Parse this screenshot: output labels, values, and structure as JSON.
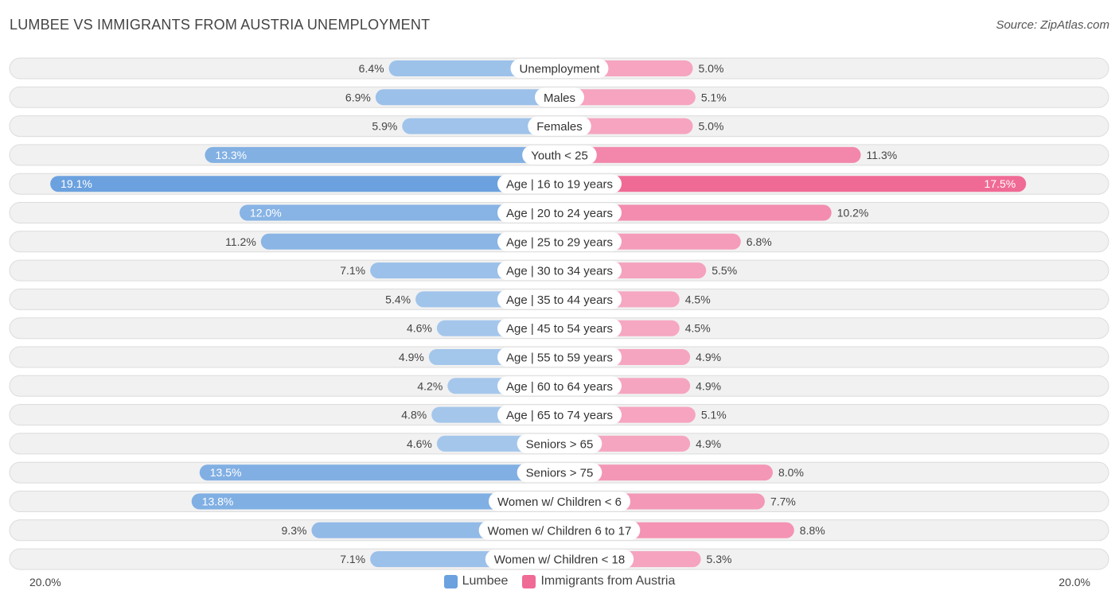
{
  "title": "LUMBEE VS IMMIGRANTS FROM AUSTRIA UNEMPLOYMENT",
  "source": "Source: ZipAtlas.com",
  "colors": {
    "left_light": "#a7c8ec",
    "left_dark": "#6ba1de",
    "right_light": "#f6a9c3",
    "right_dark": "#f06a96"
  },
  "legend": [
    {
      "name": "Lumbee",
      "color": "#6ba1de"
    },
    {
      "name": "Immigrants from Austria",
      "color": "#f06a96"
    }
  ],
  "axis": {
    "left_label": "20.0%",
    "right_label": "20.0%"
  },
  "chart_data": {
    "type": "bar",
    "orientation": "horizontal-diverging",
    "title": "LUMBEE VS IMMIGRANTS FROM AUSTRIA UNEMPLOYMENT",
    "xlim": [
      0,
      20
    ],
    "unit": "%",
    "categories": [
      "Unemployment",
      "Males",
      "Females",
      "Youth < 25",
      "Age | 16 to 19 years",
      "Age | 20 to 24 years",
      "Age | 25 to 29 years",
      "Age | 30 to 34 years",
      "Age | 35 to 44 years",
      "Age | 45 to 54 years",
      "Age | 55 to 59 years",
      "Age | 60 to 64 years",
      "Age | 65 to 74 years",
      "Seniors > 65",
      "Seniors > 75",
      "Women w/ Children < 6",
      "Women w/ Children 6 to 17",
      "Women w/ Children < 18"
    ],
    "series": [
      {
        "name": "Lumbee",
        "side": "left",
        "values": [
          6.4,
          6.9,
          5.9,
          13.3,
          19.1,
          12.0,
          11.2,
          7.1,
          5.4,
          4.6,
          4.9,
          4.2,
          4.8,
          4.6,
          13.5,
          13.8,
          9.3,
          7.1
        ],
        "labels": [
          "6.4%",
          "6.9%",
          "5.9%",
          "13.3%",
          "19.1%",
          "12.0%",
          "11.2%",
          "7.1%",
          "5.4%",
          "4.6%",
          "4.9%",
          "4.2%",
          "4.8%",
          "4.6%",
          "13.5%",
          "13.8%",
          "9.3%",
          "7.1%"
        ]
      },
      {
        "name": "Immigrants from Austria",
        "side": "right",
        "values": [
          5.0,
          5.1,
          5.0,
          11.3,
          17.5,
          10.2,
          6.8,
          5.5,
          4.5,
          4.5,
          4.9,
          4.9,
          5.1,
          4.9,
          8.0,
          7.7,
          8.8,
          5.3
        ],
        "labels": [
          "5.0%",
          "5.1%",
          "5.0%",
          "11.3%",
          "17.5%",
          "10.2%",
          "6.8%",
          "5.5%",
          "4.5%",
          "4.5%",
          "4.9%",
          "4.9%",
          "5.1%",
          "4.9%",
          "8.0%",
          "7.7%",
          "8.8%",
          "5.3%"
        ]
      }
    ]
  }
}
